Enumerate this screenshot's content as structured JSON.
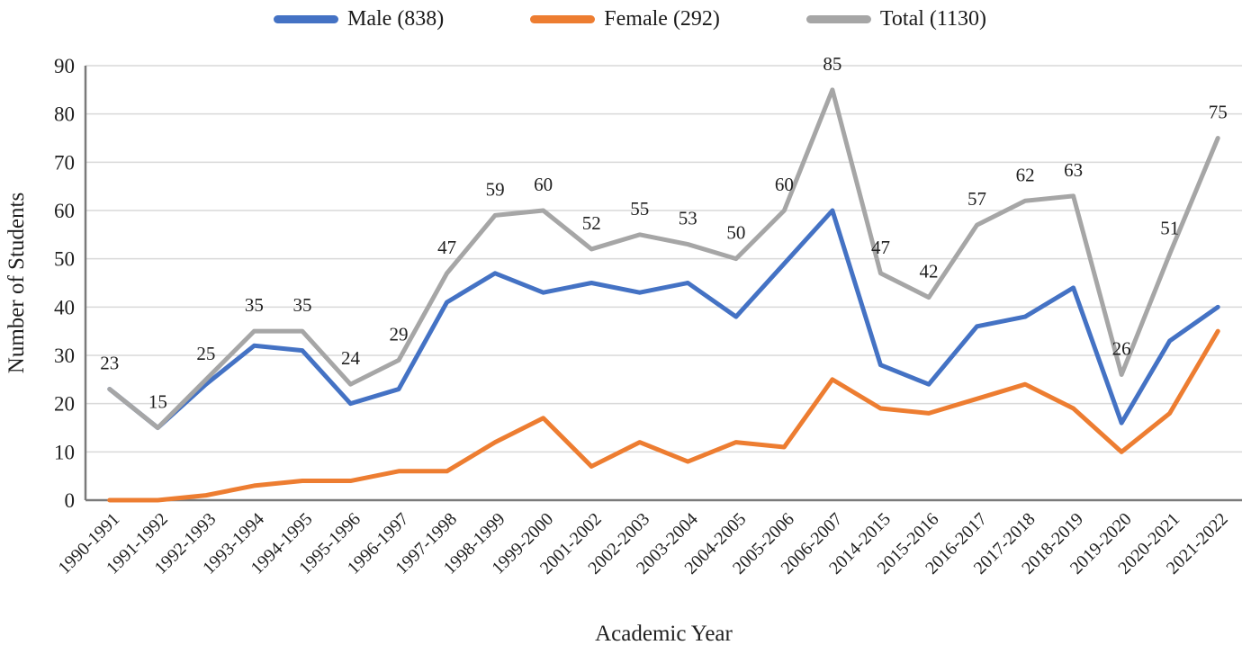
{
  "legend": [
    {
      "label": "Male (838)",
      "color": "#4472C4"
    },
    {
      "label": "Female (292)",
      "color": "#ED7D31"
    },
    {
      "label": "Total (1130)",
      "color": "#A6A6A6"
    }
  ],
  "axes": {
    "xlabel": "Academic Year",
    "ylabel": "Number of Students"
  },
  "colors": {
    "male": "#4472C4",
    "female": "#ED7D31",
    "total": "#A6A6A6",
    "gridline": "#D9D9D9",
    "axis_line": "#7A7A7A",
    "text": "#1F1F1F"
  },
  "chart_data": {
    "type": "line",
    "title": "",
    "xlabel": "Academic Year",
    "ylabel": "Number of Students",
    "ylim": [
      0,
      90
    ],
    "yticks": [
      0,
      10,
      20,
      30,
      40,
      50,
      60,
      70,
      80,
      90
    ],
    "grid": true,
    "legend_position": "top",
    "categories": [
      "1990-1991",
      "1991-1992",
      "1992-1993",
      "1993-1994",
      "1994-1995",
      "1995-1996",
      "1996-1997",
      "1997-1998",
      "1998-1999",
      "1999-2000",
      "2001-2002",
      "2002-2003",
      "2003-2004",
      "2004-2005",
      "2005-2006",
      "2006-2007",
      "2014-2015",
      "2015-2016",
      "2016-2017",
      "2017-2018",
      "2018-2019",
      "2019-2020",
      "2020-2021",
      "2021-2022"
    ],
    "series": [
      {
        "name": "Male (838)",
        "color": "#4472C4",
        "data_labels": false,
        "values": [
          23,
          15,
          24,
          32,
          31,
          20,
          23,
          41,
          47,
          43,
          45,
          43,
          45,
          38,
          49,
          60,
          28,
          24,
          36,
          38,
          44,
          16,
          33,
          40
        ]
      },
      {
        "name": "Female (292)",
        "color": "#ED7D31",
        "data_labels": false,
        "values": [
          0,
          0,
          1,
          3,
          4,
          4,
          6,
          6,
          12,
          17,
          7,
          12,
          8,
          12,
          11,
          25,
          19,
          18,
          21,
          24,
          19,
          10,
          18,
          35
        ]
      },
      {
        "name": "Total (1130)",
        "color": "#A6A6A6",
        "data_labels": true,
        "values": [
          23,
          15,
          25,
          35,
          35,
          24,
          29,
          47,
          59,
          60,
          52,
          55,
          53,
          50,
          60,
          85,
          47,
          42,
          57,
          62,
          63,
          26,
          51,
          75
        ]
      }
    ]
  }
}
